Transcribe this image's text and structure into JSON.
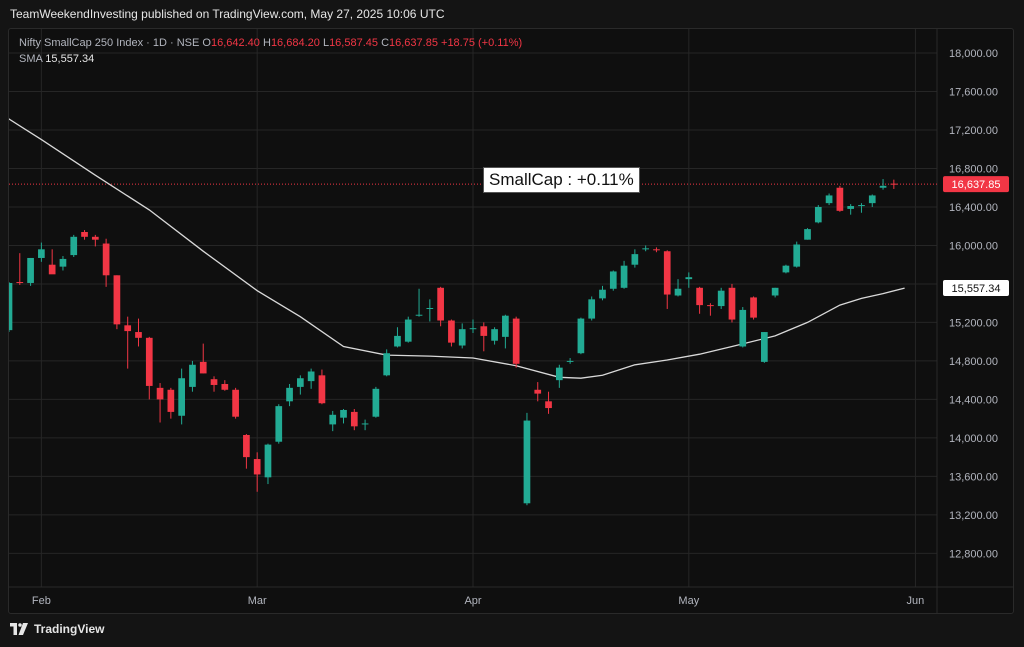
{
  "header": {
    "caption": "TeamWeekendInvesting published on TradingView.com, May 27, 2025 10:06 UTC"
  },
  "legend": {
    "symbol": "Nifty SmallCap 250 Index · 1D · NSE",
    "o_label": "O",
    "o_value": "16,642.40",
    "h_label": "H",
    "h_value": "16,684.20",
    "l_label": "L",
    "l_value": "16,587.45",
    "c_label": "C",
    "c_value": "16,637.85",
    "change": "+18.75 (+0.11%)",
    "sma_label": "SMA",
    "sma_value": "15,557.34"
  },
  "callout": {
    "text": "SmallCap : +0.11%"
  },
  "footer": {
    "brand": "TradingView"
  },
  "colors": {
    "up": "#22ab94",
    "down": "#f23645",
    "sma": "#d9d9d9",
    "grid": "#262626",
    "axis_text": "#b2b5be"
  },
  "chart_data": {
    "type": "candlestick",
    "title": "Nifty SmallCap 250 Index · 1D · NSE",
    "y_ticks": [
      12800,
      13200,
      13600,
      14000,
      14400,
      14800,
      15200,
      15600,
      16000,
      16400,
      16800,
      17200,
      17600,
      18000
    ],
    "y_tick_labels": [
      "12,800.00",
      "13,200.00",
      "13,600.00",
      "14,000.00",
      "14,400.00",
      "14,800.00",
      "15,200.00",
      "15,600.00",
      "16,000.00",
      "16,400.00",
      "16,800.00",
      "17,200.00",
      "17,600.00",
      "18,000.00"
    ],
    "ylim": [
      12450,
      18250
    ],
    "x_labels": [
      {
        "label": "Feb",
        "index": 3
      },
      {
        "label": "Mar",
        "index": 23
      },
      {
        "label": "Apr",
        "index": 43
      },
      {
        "label": "May",
        "index": 63
      },
      {
        "label": "Jun",
        "index": 84
      }
    ],
    "xlim": [
      0,
      86
    ],
    "last_price": 16637.85,
    "last_price_label": "16,637.85",
    "sma_last_label": "15,557.34",
    "candles": [
      {
        "o": 15120,
        "h": 15620,
        "l": 15100,
        "c": 15610
      },
      {
        "o": 15620,
        "h": 15920,
        "l": 15590,
        "c": 15610
      },
      {
        "o": 15610,
        "h": 15870,
        "l": 15580,
        "c": 15870
      },
      {
        "o": 15870,
        "h": 16030,
        "l": 15830,
        "c": 15960
      },
      {
        "o": 15800,
        "h": 15960,
        "l": 15750,
        "c": 15700
      },
      {
        "o": 15780,
        "h": 15890,
        "l": 15740,
        "c": 15860
      },
      {
        "o": 15900,
        "h": 16110,
        "l": 15880,
        "c": 16090
      },
      {
        "o": 16140,
        "h": 16160,
        "l": 16060,
        "c": 16090
      },
      {
        "o": 16090,
        "h": 16110,
        "l": 15990,
        "c": 16060
      },
      {
        "o": 16020,
        "h": 16070,
        "l": 15570,
        "c": 15690
      },
      {
        "o": 15690,
        "h": 15690,
        "l": 15130,
        "c": 15180
      },
      {
        "o": 15170,
        "h": 15260,
        "l": 14720,
        "c": 15110
      },
      {
        "o": 15100,
        "h": 15240,
        "l": 14950,
        "c": 15040
      },
      {
        "o": 15040,
        "h": 15050,
        "l": 14400,
        "c": 14540
      },
      {
        "o": 14520,
        "h": 14570,
        "l": 14160,
        "c": 14400
      },
      {
        "o": 14500,
        "h": 14520,
        "l": 14200,
        "c": 14270
      },
      {
        "o": 14230,
        "h": 14720,
        "l": 14140,
        "c": 14620
      },
      {
        "o": 14530,
        "h": 14800,
        "l": 14480,
        "c": 14760
      },
      {
        "o": 14790,
        "h": 14980,
        "l": 14670,
        "c": 14670
      },
      {
        "o": 14610,
        "h": 14640,
        "l": 14480,
        "c": 14550
      },
      {
        "o": 14560,
        "h": 14600,
        "l": 14490,
        "c": 14500
      },
      {
        "o": 14500,
        "h": 14520,
        "l": 14200,
        "c": 14220
      },
      {
        "o": 14030,
        "h": 14040,
        "l": 13680,
        "c": 13800
      },
      {
        "o": 13780,
        "h": 13850,
        "l": 13440,
        "c": 13620
      },
      {
        "o": 13590,
        "h": 13940,
        "l": 13520,
        "c": 13930
      },
      {
        "o": 13960,
        "h": 14350,
        "l": 13940,
        "c": 14330
      },
      {
        "o": 14380,
        "h": 14560,
        "l": 14330,
        "c": 14520
      },
      {
        "o": 14530,
        "h": 14650,
        "l": 14450,
        "c": 14620
      },
      {
        "o": 14590,
        "h": 14720,
        "l": 14510,
        "c": 14690
      },
      {
        "o": 14650,
        "h": 14710,
        "l": 14350,
        "c": 14360
      },
      {
        "o": 14140,
        "h": 14280,
        "l": 14070,
        "c": 14240
      },
      {
        "o": 14210,
        "h": 14300,
        "l": 14150,
        "c": 14290
      },
      {
        "o": 14270,
        "h": 14300,
        "l": 14080,
        "c": 14120
      },
      {
        "o": 14150,
        "h": 14190,
        "l": 14080,
        "c": 14150
      },
      {
        "o": 14220,
        "h": 14530,
        "l": 14210,
        "c": 14510
      },
      {
        "o": 14650,
        "h": 14920,
        "l": 14640,
        "c": 14880
      },
      {
        "o": 14950,
        "h": 15150,
        "l": 14940,
        "c": 15060
      },
      {
        "o": 15000,
        "h": 15260,
        "l": 14990,
        "c": 15230
      },
      {
        "o": 15280,
        "h": 15550,
        "l": 15260,
        "c": 15280
      },
      {
        "o": 15340,
        "h": 15440,
        "l": 15210,
        "c": 15350
      },
      {
        "o": 15560,
        "h": 15570,
        "l": 15160,
        "c": 15220
      },
      {
        "o": 15220,
        "h": 15230,
        "l": 14950,
        "c": 14990
      },
      {
        "o": 14960,
        "h": 15190,
        "l": 14930,
        "c": 15130
      },
      {
        "o": 15140,
        "h": 15230,
        "l": 15090,
        "c": 15140
      },
      {
        "o": 15160,
        "h": 15200,
        "l": 14900,
        "c": 15060
      },
      {
        "o": 15010,
        "h": 15150,
        "l": 14970,
        "c": 15130
      },
      {
        "o": 15050,
        "h": 15280,
        "l": 14930,
        "c": 15270
      },
      {
        "o": 15240,
        "h": 15260,
        "l": 14730,
        "c": 14770
      },
      {
        "o": 13320,
        "h": 14260,
        "l": 13300,
        "c": 14180
      },
      {
        "o": 14500,
        "h": 14580,
        "l": 14380,
        "c": 14460
      },
      {
        "o": 14380,
        "h": 14480,
        "l": 14250,
        "c": 14310
      },
      {
        "o": 14600,
        "h": 14760,
        "l": 14520,
        "c": 14730
      },
      {
        "o": 14800,
        "h": 14830,
        "l": 14770,
        "c": 14800
      },
      {
        "o": 14880,
        "h": 15250,
        "l": 14870,
        "c": 15240
      },
      {
        "o": 15240,
        "h": 15470,
        "l": 15220,
        "c": 15440
      },
      {
        "o": 15450,
        "h": 15580,
        "l": 15430,
        "c": 15540
      },
      {
        "o": 15550,
        "h": 15740,
        "l": 15530,
        "c": 15730
      },
      {
        "o": 15560,
        "h": 15840,
        "l": 15550,
        "c": 15790
      },
      {
        "o": 15800,
        "h": 15960,
        "l": 15770,
        "c": 15910
      },
      {
        "o": 15960,
        "h": 16000,
        "l": 15940,
        "c": 15970
      },
      {
        "o": 15960,
        "h": 15980,
        "l": 15930,
        "c": 15950
      },
      {
        "o": 15940,
        "h": 15950,
        "l": 15340,
        "c": 15490
      },
      {
        "o": 15480,
        "h": 15650,
        "l": 15470,
        "c": 15550
      },
      {
        "o": 15650,
        "h": 15720,
        "l": 15560,
        "c": 15670
      },
      {
        "o": 15560,
        "h": 15570,
        "l": 15290,
        "c": 15380
      },
      {
        "o": 15380,
        "h": 15400,
        "l": 15270,
        "c": 15370
      },
      {
        "o": 15370,
        "h": 15560,
        "l": 15340,
        "c": 15530
      },
      {
        "o": 15560,
        "h": 15600,
        "l": 15200,
        "c": 15230
      },
      {
        "o": 14950,
        "h": 15360,
        "l": 14940,
        "c": 15330
      },
      {
        "o": 15460,
        "h": 15470,
        "l": 15230,
        "c": 15250
      },
      {
        "o": 14790,
        "h": 15100,
        "l": 14780,
        "c": 15100
      },
      {
        "o": 15480,
        "h": 15560,
        "l": 15460,
        "c": 15560
      },
      {
        "o": 15720,
        "h": 15800,
        "l": 15710,
        "c": 15790
      },
      {
        "o": 15780,
        "h": 16040,
        "l": 15770,
        "c": 16010
      },
      {
        "o": 16060,
        "h": 16180,
        "l": 16060,
        "c": 16170
      },
      {
        "o": 16240,
        "h": 16420,
        "l": 16230,
        "c": 16400
      },
      {
        "o": 16440,
        "h": 16540,
        "l": 16420,
        "c": 16520
      },
      {
        "o": 16600,
        "h": 16620,
        "l": 16350,
        "c": 16360
      },
      {
        "o": 16380,
        "h": 16430,
        "l": 16320,
        "c": 16410
      },
      {
        "o": 16410,
        "h": 16440,
        "l": 16340,
        "c": 16420
      },
      {
        "o": 16440,
        "h": 16530,
        "l": 16400,
        "c": 16520
      },
      {
        "o": 16600,
        "h": 16690,
        "l": 16580,
        "c": 16620
      },
      {
        "o": 16642.4,
        "h": 16684.2,
        "l": 16587.45,
        "c": 16637.85
      }
    ],
    "sma": {
      "name": "SMA",
      "points": [
        [
          -0.5,
          17350
        ],
        [
          3,
          17100
        ],
        [
          8,
          16730
        ],
        [
          13,
          16370
        ],
        [
          18,
          15940
        ],
        [
          23,
          15530
        ],
        [
          27,
          15260
        ],
        [
          31,
          14950
        ],
        [
          35,
          14860
        ],
        [
          39,
          14850
        ],
        [
          43,
          14830
        ],
        [
          47,
          14750
        ],
        [
          51,
          14630
        ],
        [
          53,
          14620
        ],
        [
          55,
          14650
        ],
        [
          58,
          14760
        ],
        [
          61,
          14810
        ],
        [
          64,
          14870
        ],
        [
          67,
          14950
        ],
        [
          71,
          15060
        ],
        [
          74,
          15200
        ],
        [
          77,
          15380
        ],
        [
          79,
          15450
        ],
        [
          81,
          15500
        ],
        [
          83,
          15557.34
        ]
      ]
    }
  }
}
